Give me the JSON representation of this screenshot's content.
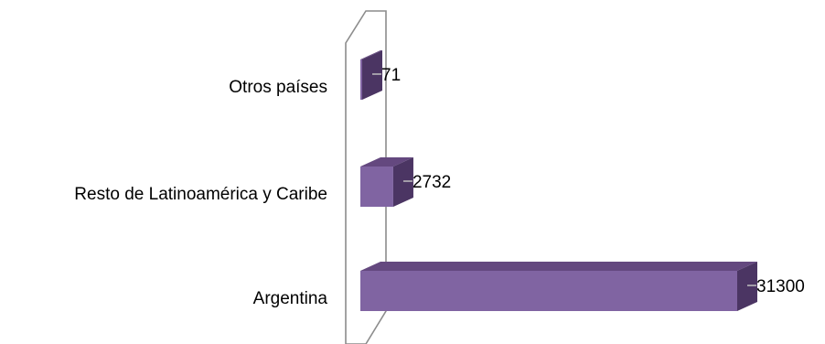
{
  "chart_data": {
    "type": "bar",
    "orientation": "horizontal",
    "style": "3d",
    "categories": [
      "Argentina",
      "Resto de Latinoamérica y Caribe",
      "Otros países"
    ],
    "values": [
      31300,
      2732,
      71
    ],
    "data_labels": [
      "31300",
      "2732",
      "71"
    ],
    "title": "",
    "xlabel": "",
    "ylabel": "",
    "grid": false,
    "legend": "none"
  },
  "colors": {
    "bar_front": "#8064a2",
    "bar_top": "#64487f",
    "bar_side": "#4b3563",
    "wall_stroke": "#8c8c8c",
    "leader_line": "#bfbfbf"
  }
}
